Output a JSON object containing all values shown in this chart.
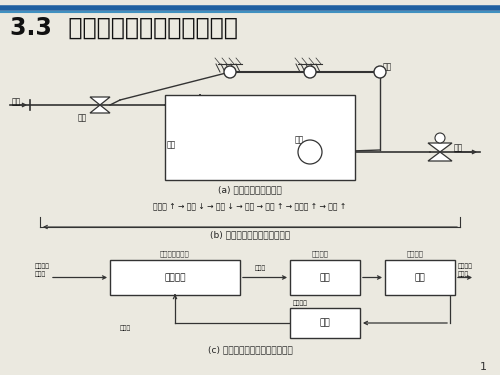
{
  "title": "3.3  机械液压调速器的基本原理",
  "title_fontsize": 18,
  "slide_bg": "#ebe9e0",
  "blue_line1_color": "#2060a0",
  "blue_line2_color": "#4090c0",
  "section_a_label": "(a) 水位自动调节原理图",
  "section_b_label": "(b) 水位自动调节过程分析简图",
  "section_c_label": "(c) 连杆自动调节水位系统方框图",
  "flow_b": "出水量 ↑ → 水位 ↓ → 浮子 ↓ → 连杆 → 阀门 ↑ → 进水量 ↑ → 水位 ↑",
  "label_jinshui": "进水",
  "label_famen": "阀门",
  "label_shuixiang": "水筒",
  "label_fuzi": "浮子",
  "label_liangan": "连杆",
  "label_chushui": "出水",
  "label_bijiao": "比较器与控制器",
  "label_zhixing": "执行机构",
  "label_beikong": "被控对象",
  "label_mubiao": "目标水位",
  "label_geding": "给定量",
  "label_kongzhi": "控制量",
  "label_shiji": "实际水位",
  "label_beijian": "被检量",
  "label_fankui": "反馈量",
  "label_fankuizhuangzhi": "反馈装置",
  "label_liangangoublock": "连杆机构",
  "label_famenblock": "阀门",
  "label_shuixiangblock": "水筒",
  "label_fuziblock": "浮子",
  "page_num": "1"
}
